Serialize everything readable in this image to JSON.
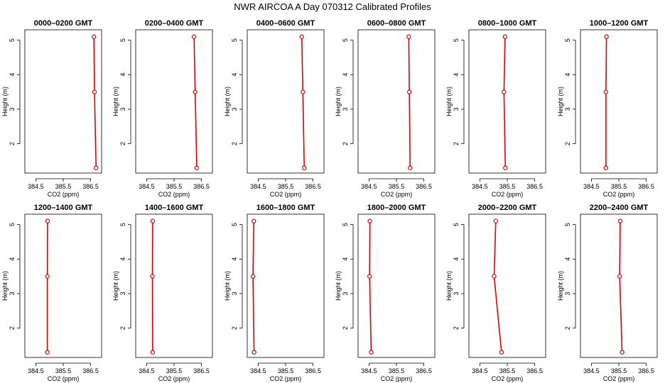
{
  "title": "NWR AIRCOA A  Day 070312  Calibrated Profiles",
  "colors": {
    "line": "#dd0000",
    "axes": "#000000",
    "background": "#ffffff"
  },
  "chart_data": {
    "type": "line",
    "xlabel": "CO2 (ppm)",
    "ylabel": "Height (m)",
    "xticks": [
      "384.5",
      "385.5",
      "386.5"
    ],
    "xtick_values": [
      384.5,
      385.5,
      386.5
    ],
    "yticks": [
      "2",
      "3",
      "4",
      "5"
    ],
    "ytick_values": [
      2,
      3,
      4,
      5
    ],
    "xlim": [
      384.1,
      386.9
    ],
    "ylim": [
      1.15,
      5.3
    ],
    "grid": false,
    "legend": "none",
    "panels": [
      {
        "title": "0000–0200 GMT",
        "points": [
          [
            386.62,
            5.1
          ],
          [
            386.64,
            3.5
          ],
          [
            386.7,
            1.3
          ]
        ]
      },
      {
        "title": "0200–0400 GMT",
        "points": [
          [
            386.23,
            5.1
          ],
          [
            386.27,
            3.5
          ],
          [
            386.33,
            1.3
          ]
        ]
      },
      {
        "title": "0400–0600 GMT",
        "points": [
          [
            386.09,
            5.1
          ],
          [
            386.13,
            3.5
          ],
          [
            386.18,
            1.3
          ]
        ]
      },
      {
        "title": "0600–0800 GMT",
        "points": [
          [
            385.95,
            5.1
          ],
          [
            385.97,
            3.5
          ],
          [
            386.0,
            1.3
          ]
        ]
      },
      {
        "title": "0800–1000 GMT",
        "points": [
          [
            385.42,
            5.1
          ],
          [
            385.38,
            3.5
          ],
          [
            385.43,
            1.3
          ]
        ]
      },
      {
        "title": "1000–1200 GMT",
        "points": [
          [
            385.05,
            5.1
          ],
          [
            385.03,
            3.5
          ],
          [
            385.03,
            1.3
          ]
        ]
      },
      {
        "title": "1200–1400 GMT",
        "points": [
          [
            384.93,
            5.1
          ],
          [
            384.92,
            3.5
          ],
          [
            384.92,
            1.3
          ]
        ]
      },
      {
        "title": "1400–1600 GMT",
        "points": [
          [
            384.72,
            5.1
          ],
          [
            384.71,
            3.5
          ],
          [
            384.72,
            1.3
          ]
        ]
      },
      {
        "title": "1600–1800 GMT",
        "points": [
          [
            384.34,
            5.1
          ],
          [
            384.31,
            3.5
          ],
          [
            384.35,
            1.3
          ]
        ]
      },
      {
        "title": "1800–2000 GMT",
        "points": [
          [
            384.53,
            5.1
          ],
          [
            384.52,
            3.5
          ],
          [
            384.58,
            1.3
          ]
        ]
      },
      {
        "title": "2000–2200 GMT",
        "points": [
          [
            385.08,
            5.1
          ],
          [
            385.02,
            3.5
          ],
          [
            385.29,
            1.3
          ]
        ]
      },
      {
        "title": "2200–2400 GMT",
        "points": [
          [
            385.55,
            5.1
          ],
          [
            385.53,
            3.5
          ],
          [
            385.62,
            1.3
          ]
        ]
      }
    ]
  }
}
